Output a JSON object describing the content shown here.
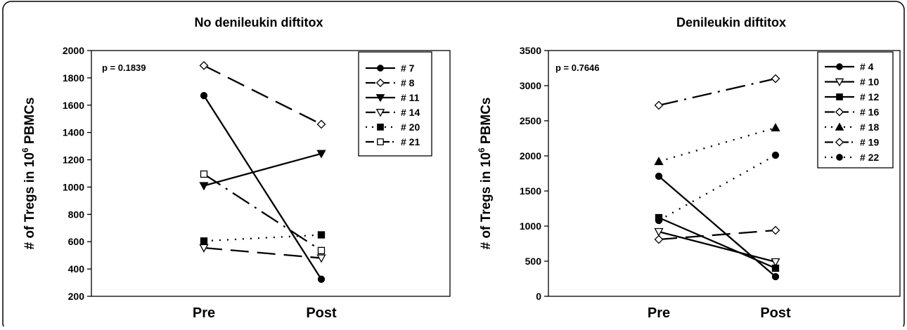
{
  "chart_data": [
    {
      "type": "line",
      "title": "No denileukin diftitox",
      "ylabel": "# of Tregs in 10",
      "ylabel_sup": "6",
      "ylabel_tail": " PBMCs",
      "categories": [
        "Pre",
        "Post"
      ],
      "ylim": [
        200,
        2000
      ],
      "yticks": [
        200,
        400,
        600,
        800,
        1000,
        1200,
        1400,
        1600,
        1800,
        2000
      ],
      "annotation": "p = 0.1839",
      "legend_position": "top-right",
      "series": [
        {
          "name": "# 7",
          "values": [
            1670,
            325
          ],
          "marker": "circle-filled",
          "dash": "solid"
        },
        {
          "name": "# 8",
          "values": [
            1890,
            1460
          ],
          "marker": "diamond-open",
          "dash": "long"
        },
        {
          "name": "# 11",
          "values": [
            1010,
            1245
          ],
          "marker": "triangle-down-filled",
          "dash": "solid"
        },
        {
          "name": "# 14",
          "values": [
            555,
            480
          ],
          "marker": "triangle-down-open",
          "dash": "long"
        },
        {
          "name": "# 20",
          "values": [
            605,
            650
          ],
          "marker": "square-filled",
          "dash": "dotted"
        },
        {
          "name": "# 21",
          "values": [
            1095,
            535
          ],
          "marker": "square-open",
          "dash": "dashdot"
        }
      ]
    },
    {
      "type": "line",
      "title": "Denileukin diftitox",
      "ylabel": "# of Tregs in 10",
      "ylabel_sup": "6",
      "ylabel_tail": " PBMCs",
      "categories": [
        "Pre",
        "Post"
      ],
      "ylim": [
        0,
        3500
      ],
      "yticks": [
        0,
        500,
        1000,
        1500,
        2000,
        2500,
        3000,
        3500
      ],
      "annotation": "p = 0.7646",
      "legend_position": "top-right",
      "series": [
        {
          "name": "# 4",
          "values": [
            1710,
            280
          ],
          "marker": "circle-filled",
          "dash": "solid"
        },
        {
          "name": "# 10",
          "values": [
            920,
            490
          ],
          "marker": "triangle-down-open",
          "dash": "solid"
        },
        {
          "name": "# 12",
          "values": [
            1120,
            400
          ],
          "marker": "square-filled",
          "dash": "solid"
        },
        {
          "name": "# 16",
          "values": [
            810,
            940
          ],
          "marker": "diamond-open",
          "dash": "long"
        },
        {
          "name": "# 18",
          "values": [
            1920,
            2400
          ],
          "marker": "triangle-up-filled",
          "dash": "dotted"
        },
        {
          "name": "# 19",
          "values": [
            2720,
            3100
          ],
          "marker": "diamond-open",
          "dash": "dashdot"
        },
        {
          "name": "# 22",
          "values": [
            1080,
            2010
          ],
          "marker": "circle-filled",
          "dash": "dotted"
        }
      ]
    }
  ]
}
